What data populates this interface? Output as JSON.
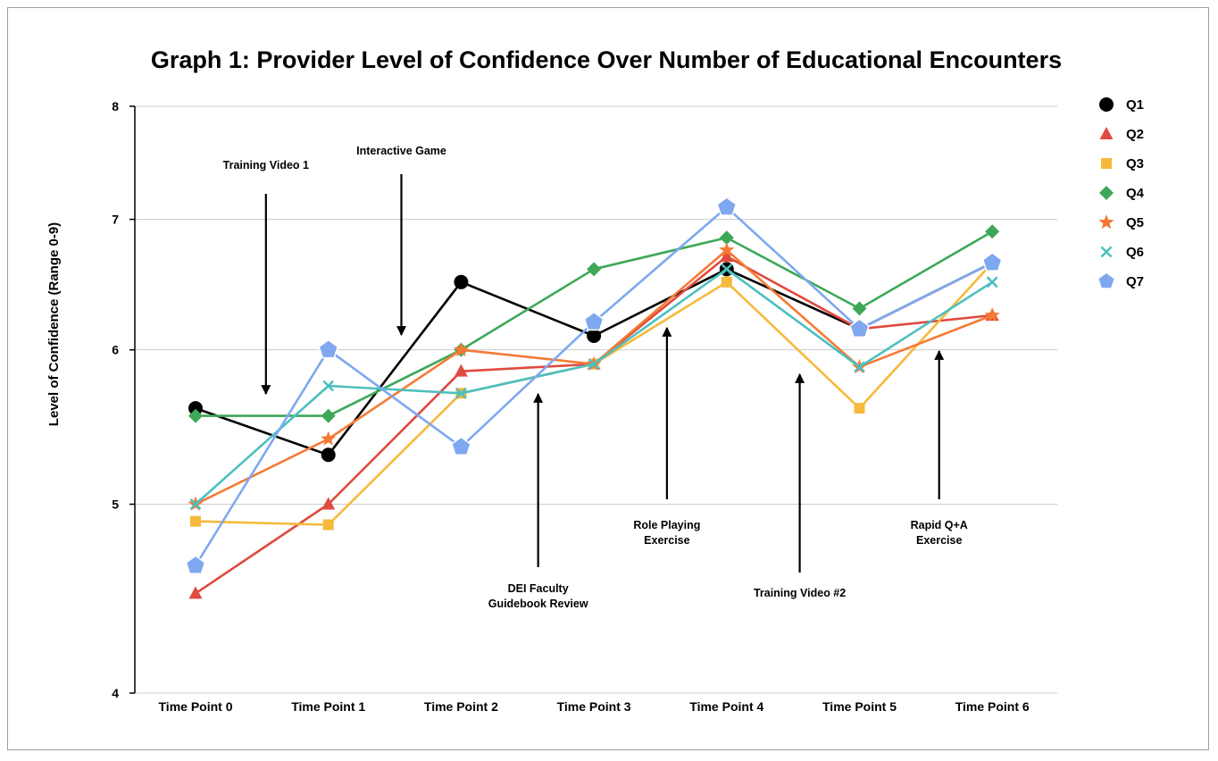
{
  "chart_data": {
    "type": "line",
    "title": "Graph 1: Provider Level of Confidence Over Number of Educational Encounters",
    "xlabel": "",
    "ylabel": "Level of Confidence (Range 0-9)",
    "categories": [
      "Time Point 0",
      "Time Point 1",
      "Time Point 2",
      "Time Point 3",
      "Time Point 4",
      "Time Point 5",
      "Time Point 6"
    ],
    "y_ticks": [
      "4",
      "5",
      "6",
      "7",
      "8"
    ],
    "ylim": [
      4,
      8
    ],
    "y_scale": "log",
    "grid": true,
    "legend_position": "right",
    "series": [
      {
        "name": "Q1",
        "color": "#000000",
        "marker": "circle",
        "values": [
          5.6,
          5.3,
          6.5,
          6.1,
          6.6,
          6.15,
          6.65
        ]
      },
      {
        "name": "Q2",
        "color": "#e04a3f",
        "marker": "triangle",
        "values": [
          4.5,
          5.0,
          5.85,
          5.9,
          6.7,
          6.15,
          6.25
        ]
      },
      {
        "name": "Q3",
        "color": "#f6b93b",
        "marker": "square",
        "values": [
          4.9,
          4.88,
          5.7,
          5.9,
          6.5,
          5.6,
          6.65
        ]
      },
      {
        "name": "Q4",
        "color": "#3ea858",
        "marker": "diamond",
        "values": [
          5.55,
          5.55,
          6.0,
          6.6,
          6.85,
          6.3,
          6.9
        ]
      },
      {
        "name": "Q5",
        "color": "#f57a35",
        "marker": "star",
        "values": [
          5.0,
          5.4,
          6.0,
          5.9,
          6.75,
          5.88,
          6.25
        ]
      },
      {
        "name": "Q6",
        "color": "#4dbfbf",
        "marker": "x",
        "values": [
          5.0,
          5.75,
          5.7,
          5.9,
          6.6,
          5.88,
          6.5
        ]
      },
      {
        "name": "Q7",
        "color": "#7fa8f0",
        "marker": "pentagon",
        "values": [
          4.65,
          6.0,
          5.35,
          6.2,
          7.1,
          6.15,
          6.65
        ]
      }
    ],
    "annotations": [
      {
        "lines": [
          "Training Video 1"
        ],
        "arrow": "down",
        "x": 0.53
      },
      {
        "lines": [
          "Interactive Game"
        ],
        "arrow": "down",
        "x": 1.55
      },
      {
        "lines": [
          "DEI Faculty",
          "Guidebook Review"
        ],
        "arrow": "up",
        "x": 2.58
      },
      {
        "lines": [
          "Role Playing",
          "Exercise"
        ],
        "arrow": "up",
        "x": 3.55
      },
      {
        "lines": [
          "Training Video #2"
        ],
        "arrow": "up",
        "x": 4.55
      },
      {
        "lines": [
          "Rapid Q+A",
          "Exercise"
        ],
        "arrow": "up",
        "x": 5.6
      }
    ]
  }
}
